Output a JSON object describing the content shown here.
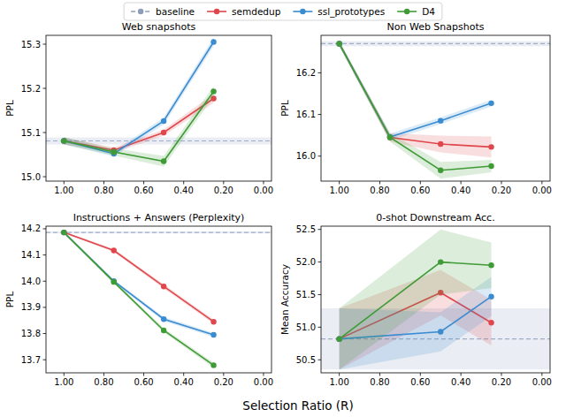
{
  "chart_data": [
    {
      "type": "line",
      "title": "Web snapshots",
      "y_label": "PPL",
      "x": [
        1.0,
        0.75,
        0.5,
        0.25
      ],
      "xlim": [
        1.09,
        -0.04
      ],
      "xticks": [
        {
          "value": 1.0,
          "label": "1.00"
        },
        {
          "value": 0.8,
          "label": "0.80"
        },
        {
          "value": 0.6,
          "label": "0.60"
        },
        {
          "value": 0.4,
          "label": "0.40"
        },
        {
          "value": 0.2,
          "label": "0.20"
        },
        {
          "value": 0.0,
          "label": "0.00"
        }
      ],
      "ylim": [
        14.99,
        15.32
      ],
      "yticks": [
        {
          "value": 15.0,
          "label": "15.0"
        },
        15.1,
        15.2,
        15.3
      ],
      "series": [
        {
          "name": "baseline",
          "color": "#8c9dba",
          "marker": "circle",
          "line_style": "dashed",
          "x": [
            1.09,
            -0.04
          ],
          "values": [
            15.081,
            15.081
          ],
          "error": [
            0.008,
            0.008
          ]
        },
        {
          "name": "semdedup",
          "color": "#e0474c",
          "marker": "circle",
          "line_style": "solid",
          "values": [
            15.081,
            15.06,
            15.1,
            15.177
          ],
          "error": [
            0.008,
            0.006,
            0.007,
            0.01
          ]
        },
        {
          "name": "ssl_prototypes",
          "color": "#3a8bd0",
          "marker": "circle",
          "line_style": "solid",
          "values": [
            15.081,
            15.052,
            15.126,
            15.305
          ],
          "error": [
            0.008,
            0.006,
            0.008,
            0.01
          ]
        },
        {
          "name": "D4",
          "color": "#3f9b35",
          "marker": "circle",
          "line_style": "solid",
          "values": [
            15.081,
            15.056,
            15.035,
            15.193
          ],
          "error": [
            0.008,
            0.008,
            0.012,
            0.012
          ]
        }
      ]
    },
    {
      "type": "line",
      "title": "Non Web Snapshots",
      "y_label": "PPL",
      "x": [
        1.0,
        0.75,
        0.5,
        0.25
      ],
      "xlim": [
        1.09,
        -0.04
      ],
      "xticks": [
        {
          "value": 1.0,
          "label": "1.00"
        },
        {
          "value": 0.8,
          "label": "0.80"
        },
        {
          "value": 0.6,
          "label": "0.60"
        },
        {
          "value": 0.4,
          "label": "0.40"
        },
        {
          "value": 0.2,
          "label": "0.20"
        },
        {
          "value": 0.0,
          "label": "0.00"
        }
      ],
      "ylim": [
        15.94,
        16.29
      ],
      "yticks": [
        {
          "value": 16.0,
          "label": "16.0"
        },
        16.1,
        16.2
      ],
      "series": [
        {
          "name": "baseline",
          "color": "#8c9dba",
          "marker": "circle",
          "line_style": "dashed",
          "x": [
            1.09,
            -0.04
          ],
          "values": [
            16.27,
            16.27
          ],
          "error": [
            0.006,
            0.006
          ]
        },
        {
          "name": "semdedup",
          "color": "#e0474c",
          "marker": "circle",
          "line_style": "solid",
          "values": [
            16.27,
            16.045,
            16.029,
            16.022
          ],
          "error": [
            0.006,
            0.01,
            0.02,
            0.025
          ]
        },
        {
          "name": "ssl_prototypes",
          "color": "#3a8bd0",
          "marker": "circle",
          "line_style": "solid",
          "values": [
            16.27,
            16.046,
            16.085,
            16.127
          ],
          "error": [
            0.006,
            0.008,
            0.008,
            0.008
          ]
        },
        {
          "name": "D4",
          "color": "#3f9b35",
          "marker": "circle",
          "line_style": "solid",
          "values": [
            16.27,
            16.045,
            15.966,
            15.976
          ],
          "error": [
            0.006,
            0.01,
            0.02,
            0.015
          ]
        }
      ]
    },
    {
      "type": "line",
      "title": "Instructions + Answers (Perplexity)",
      "y_label": "PPL",
      "x": [
        1.0,
        0.75,
        0.5,
        0.25
      ],
      "xlim": [
        1.09,
        -0.04
      ],
      "xticks": [
        {
          "value": 1.0,
          "label": "1.00"
        },
        {
          "value": 0.8,
          "label": "0.80"
        },
        {
          "value": 0.6,
          "label": "0.60"
        },
        {
          "value": 0.4,
          "label": "0.40"
        },
        {
          "value": 0.2,
          "label": "0.20"
        },
        {
          "value": 0.0,
          "label": "0.00"
        }
      ],
      "ylim": [
        13.65,
        14.21
      ],
      "yticks": [
        13.7,
        13.8,
        13.9,
        {
          "value": 14.0,
          "label": "14.0"
        },
        14.1,
        14.2
      ],
      "series": [
        {
          "name": "baseline",
          "color": "#8c9dba",
          "marker": "circle",
          "line_style": "dashed",
          "x": [
            1.09,
            -0.04
          ],
          "values": [
            14.186,
            14.186
          ],
          "error": [
            0.004,
            0.004
          ]
        },
        {
          "name": "semdedup",
          "color": "#e0474c",
          "marker": "circle",
          "line_style": "solid",
          "values": [
            14.186,
            14.117,
            13.98,
            13.845
          ],
          "error": [
            0.004,
            0.006,
            0.008,
            0.008
          ]
        },
        {
          "name": "ssl_prototypes",
          "color": "#3a8bd0",
          "marker": "circle",
          "line_style": "solid",
          "values": [
            14.186,
            14.0,
            13.855,
            13.795
          ],
          "error": [
            0.004,
            0.006,
            0.008,
            0.008
          ]
        },
        {
          "name": "D4",
          "color": "#3f9b35",
          "marker": "circle",
          "line_style": "solid",
          "values": [
            14.186,
            13.997,
            13.812,
            13.679
          ],
          "error": [
            0.004,
            0.006,
            0.008,
            0.01
          ]
        }
      ]
    },
    {
      "type": "line",
      "title": "0-shot Downstream Acc.",
      "y_label": "Mean Accuracy",
      "x": [
        1.0,
        0.5,
        0.25
      ],
      "xlim": [
        1.09,
        -0.04
      ],
      "xticks": [
        {
          "value": 1.0,
          "label": "1.00"
        },
        {
          "value": 0.8,
          "label": "0.80"
        },
        {
          "value": 0.6,
          "label": "0.60"
        },
        {
          "value": 0.4,
          "label": "0.40"
        },
        {
          "value": 0.2,
          "label": "0.20"
        },
        {
          "value": 0.0,
          "label": "0.00"
        }
      ],
      "ylim": [
        50.3,
        52.55
      ],
      "yticks": [
        50.5,
        {
          "value": 51.0,
          "label": "51.0"
        },
        51.5,
        {
          "value": 52.0,
          "label": "52.0"
        },
        52.5
      ],
      "series": [
        {
          "name": "baseline",
          "color": "#8c9dba",
          "marker": "circle",
          "line_style": "dashed",
          "x": [
            1.09,
            -0.04
          ],
          "values": [
            50.82,
            50.82
          ],
          "error": [
            0.47,
            0.47
          ]
        },
        {
          "name": "semdedup",
          "color": "#e0474c",
          "marker": "circle",
          "line_style": "solid",
          "values": [
            50.82,
            51.53,
            51.07
          ],
          "error": [
            0.47,
            0.35,
            0.35
          ]
        },
        {
          "name": "ssl_prototypes",
          "color": "#3a8bd0",
          "marker": "circle",
          "line_style": "solid",
          "values": [
            50.82,
            50.93,
            51.47
          ],
          "error": [
            0.47,
            0.3,
            0.3
          ]
        },
        {
          "name": "D4",
          "color": "#3f9b35",
          "marker": "circle",
          "line_style": "solid",
          "values": [
            50.82,
            52.0,
            51.95
          ],
          "error": [
            0.47,
            0.5,
            0.35
          ]
        }
      ]
    }
  ],
  "shared": {
    "x_label": "Selection Ratio (R)"
  }
}
